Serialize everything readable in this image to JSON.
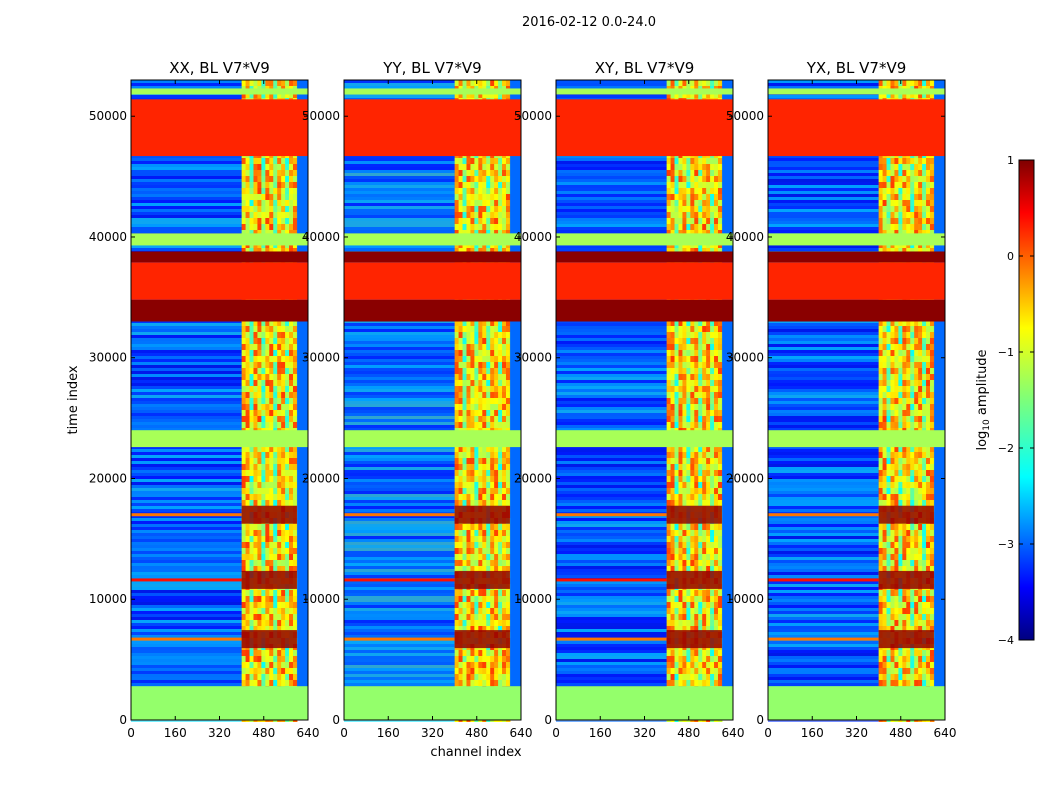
{
  "figure": {
    "suptitle": "2016-02-12 0.0-24.0"
  },
  "chart_data": {
    "type": "heatmap",
    "xlabel": "channel index",
    "ylabel": "time index",
    "xlim": [
      0,
      640
    ],
    "ylim": [
      0,
      53000
    ],
    "xticks": [
      0,
      160,
      320,
      480,
      640
    ],
    "yticks": [
      0,
      10000,
      20000,
      30000,
      40000,
      50000
    ],
    "panels": [
      {
        "id": "xx",
        "title": "XX, BL V7*V9"
      },
      {
        "id": "yy",
        "title": "YY, BL V7*V9"
      },
      {
        "id": "xy",
        "title": "XY, BL V7*V9"
      },
      {
        "id": "yx",
        "title": "YX, BL V7*V9"
      }
    ],
    "colorbar": {
      "label_prefix": "log",
      "label_sub": "10",
      "label_suffix": " amplitude",
      "ticks": [
        1,
        0,
        -1,
        -2,
        -3,
        -4
      ],
      "vmin": -4,
      "vmax": 1,
      "colormap": "jet"
    },
    "features": {
      "rfi_channel_band": [
        400,
        600
      ],
      "flagged_rows": [
        {
          "from": 0,
          "to": 2800,
          "value": -1.4
        },
        {
          "from": 22600,
          "to": 24000,
          "value": -1.3
        },
        {
          "from": 33000,
          "to": 34800,
          "value": 0.95
        },
        {
          "from": 34800,
          "to": 37900,
          "value": 0.2
        },
        {
          "from": 37900,
          "to": 38800,
          "value": 0.95
        },
        {
          "from": 39300,
          "to": 40300,
          "value": -1.3
        },
        {
          "from": 46700,
          "to": 51400,
          "value": 0.2
        },
        {
          "from": 51800,
          "to": 52300,
          "value": -1.3
        }
      ],
      "bright_rows": [
        11600,
        17000,
        6700
      ]
    }
  }
}
